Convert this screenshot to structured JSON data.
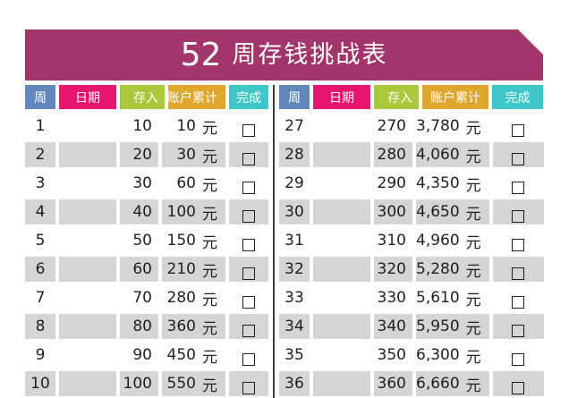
{
  "banner": {
    "number": "52",
    "title": "周存钱挑战表"
  },
  "columns": [
    "周",
    "日期",
    "存入",
    "账户累计",
    "完成"
  ],
  "currency_suffix": "元",
  "colors": {
    "banner": "#A23569",
    "header_week": "#6287BD",
    "header_date": "#E8156F",
    "header_deposit": "#A8C93C",
    "header_total": "#DFA72E",
    "header_done": "#3EC7C9",
    "shaded_row": "#D5D5D5"
  },
  "tables": [
    {
      "rows": [
        {
          "week": "1",
          "date": "",
          "deposit": "10",
          "total": "10"
        },
        {
          "week": "2",
          "date": "",
          "deposit": "20",
          "total": "30"
        },
        {
          "week": "3",
          "date": "",
          "deposit": "30",
          "total": "60"
        },
        {
          "week": "4",
          "date": "",
          "deposit": "40",
          "total": "100"
        },
        {
          "week": "5",
          "date": "",
          "deposit": "50",
          "total": "150"
        },
        {
          "week": "6",
          "date": "",
          "deposit": "60",
          "total": "210"
        },
        {
          "week": "7",
          "date": "",
          "deposit": "70",
          "total": "280"
        },
        {
          "week": "8",
          "date": "",
          "deposit": "80",
          "total": "360"
        },
        {
          "week": "9",
          "date": "",
          "deposit": "90",
          "total": "450"
        },
        {
          "week": "10",
          "date": "",
          "deposit": "100",
          "total": "550"
        }
      ]
    },
    {
      "rows": [
        {
          "week": "27",
          "date": "",
          "deposit": "270",
          "total": "3,780"
        },
        {
          "week": "28",
          "date": "",
          "deposit": "280",
          "total": "4,060"
        },
        {
          "week": "29",
          "date": "",
          "deposit": "290",
          "total": "4,350"
        },
        {
          "week": "30",
          "date": "",
          "deposit": "300",
          "total": "4,650"
        },
        {
          "week": "31",
          "date": "",
          "deposit": "310",
          "total": "4,960"
        },
        {
          "week": "32",
          "date": "",
          "deposit": "320",
          "total": "5,280"
        },
        {
          "week": "33",
          "date": "",
          "deposit": "330",
          "total": "5,610"
        },
        {
          "week": "34",
          "date": "",
          "deposit": "340",
          "total": "5,950"
        },
        {
          "week": "35",
          "date": "",
          "deposit": "350",
          "total": "6,300"
        },
        {
          "week": "36",
          "date": "",
          "deposit": "360",
          "total": "6,660"
        }
      ]
    }
  ]
}
